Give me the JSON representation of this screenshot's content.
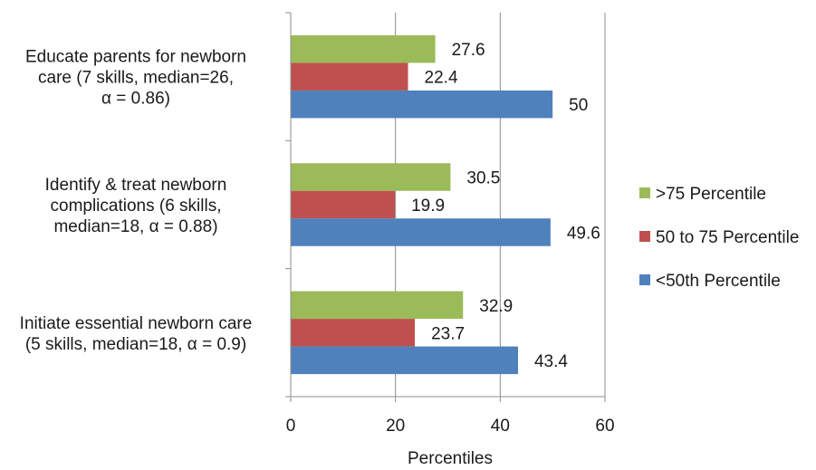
{
  "chart_data": {
    "type": "bar",
    "orientation": "horizontal",
    "title": "",
    "xlabel": "Percentiles",
    "ylabel": "",
    "xlim": [
      0,
      60
    ],
    "xticks": [
      "0",
      "20",
      "40",
      "60"
    ],
    "grid": true,
    "legend_position": "right",
    "categories": [
      [
        "Educate parents for newborn",
        "care (7 skills, median=26,",
        "α = 0.86)"
      ],
      [
        "Identify & treat newborn",
        "complications (6 skills,",
        "median=18, α = 0.88)"
      ],
      [
        "Initiate essential newborn care",
        "(5 skills, median=18, α = 0.9)"
      ]
    ],
    "series": [
      {
        "name": ">75 Percentile",
        "color": "#9BBB59",
        "values": [
          27.6,
          30.5,
          32.9
        ],
        "labels": [
          "27.6",
          "30.5",
          "32.9"
        ]
      },
      {
        "name": "50 to 75 Percentile",
        "color": "#C0504D",
        "values": [
          22.4,
          19.9,
          23.7
        ],
        "labels": [
          "22.4",
          "19.9",
          "23.7"
        ]
      },
      {
        "name": "<50th Percentile",
        "color": "#4F81BD",
        "values": [
          50,
          49.6,
          43.4
        ],
        "labels": [
          "50",
          "49.6",
          "43.4"
        ]
      }
    ]
  }
}
